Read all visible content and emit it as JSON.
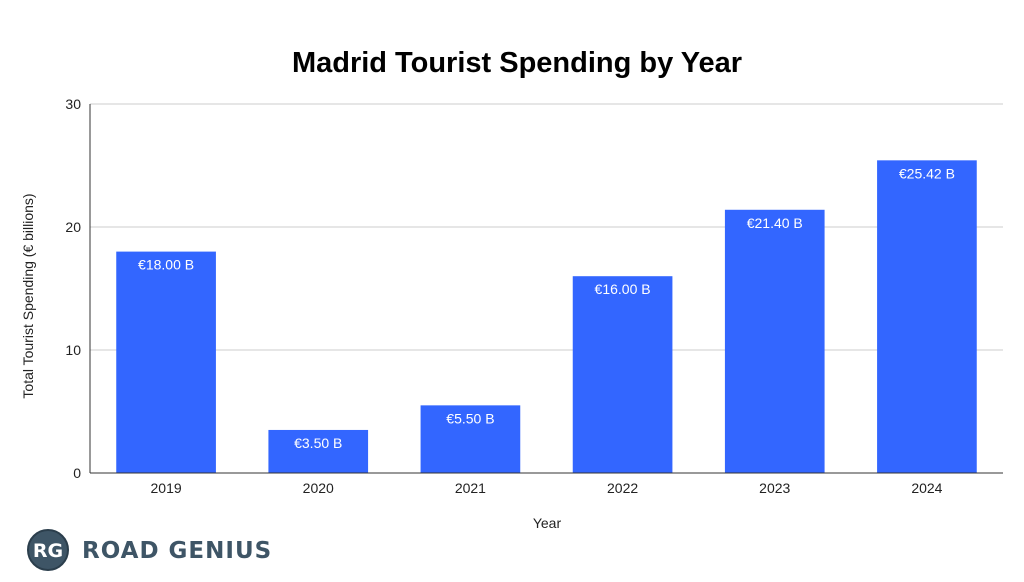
{
  "chart_data": {
    "type": "bar",
    "title": "Madrid Tourist Spending by Year",
    "xlabel": "Year",
    "ylabel": "Total Tourist Spending (€ billions)",
    "categories": [
      "2019",
      "2020",
      "2021",
      "2022",
      "2023",
      "2024"
    ],
    "values": [
      18.0,
      3.5,
      5.5,
      16.0,
      21.4,
      25.42
    ],
    "data_labels": [
      "€18.00 B",
      "€3.50 B",
      "€5.50 B",
      "€16.00 B",
      "€21.40 B",
      "€25.42 B"
    ],
    "ylim": [
      0,
      30
    ],
    "yticks": [
      0,
      10,
      20,
      30
    ],
    "grid": true,
    "legend": "none",
    "bar_color": "#3366ff"
  },
  "brand": {
    "monogram": "RG",
    "name": "ROAD GENIUS",
    "color": "#3e5566"
  }
}
